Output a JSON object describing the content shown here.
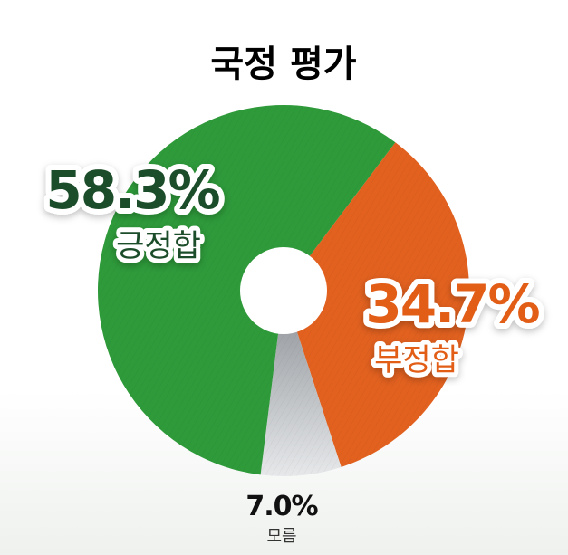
{
  "chart_data": {
    "type": "pie",
    "title": "국정 평가",
    "slices": [
      {
        "label": "긍정합",
        "value": 58.3,
        "value_label": "58.3%",
        "color": "#2e9a3a",
        "label_color": "#1d4d29"
      },
      {
        "label": "부정합",
        "value": 34.7,
        "value_label": "34.7%",
        "color": "#e2611f",
        "label_color": "#e25d18"
      },
      {
        "label": "모름",
        "value": 7.0,
        "value_label": "7.0%",
        "color": "#b9bcbf",
        "label_color": "#111111"
      }
    ]
  }
}
